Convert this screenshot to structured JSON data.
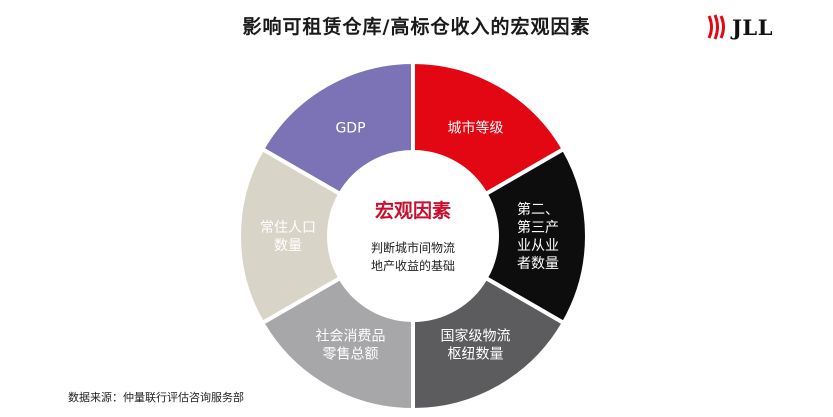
{
  "title": "影响可租赁仓库/高标仓收入的宏观因素",
  "logo": {
    "text": "JLL"
  },
  "center": {
    "title": "宏观因素",
    "subtitle_lines": [
      "判断城市间物流",
      "地产收益的基础"
    ]
  },
  "segments": [
    {
      "lines": [
        "城市等级"
      ],
      "color": "#e30613",
      "text_color": "#ffffff"
    },
    {
      "lines": [
        "第二、",
        "第三产",
        "业从业",
        "者数量"
      ],
      "color": "#0d0d0d",
      "text_color": "#ffffff"
    },
    {
      "lines": [
        "国家级物流",
        "枢纽数量"
      ],
      "color": "#5c5c5e",
      "text_color": "#ffffff"
    },
    {
      "lines": [
        "社会消费品",
        "零售总额"
      ],
      "color": "#a7a6a8",
      "text_color": "#ffffff"
    },
    {
      "lines": [
        "常住人口",
        "数量"
      ],
      "color": "#d9d4c8",
      "text_color": "#ffffff"
    },
    {
      "lines": [
        "GDP"
      ],
      "color": "#7b73b5",
      "text_color": "#ffffff"
    }
  ],
  "source": "数据来源：仲量联行评估咨询服务部"
}
